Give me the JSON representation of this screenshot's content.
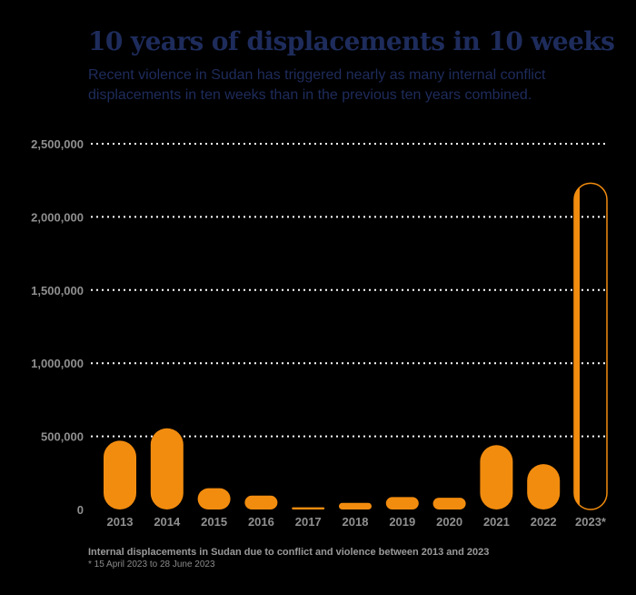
{
  "chart_data": {
    "type": "bar",
    "title": "10 years of displacements in 10 weeks",
    "subtitle": "Recent violence in Sudan has triggered nearly as many internal conflict displacements in ten weeks than in the previous ten years combined.",
    "categories": [
      "2013",
      "2014",
      "2015",
      "2016",
      "2017",
      "2018",
      "2019",
      "2020",
      "2021",
      "2022",
      "2023*"
    ],
    "values": [
      470000,
      555000,
      145000,
      95000,
      15000,
      45000,
      85000,
      80000,
      440000,
      310000,
      2230000
    ],
    "highlighted_category": "2023*",
    "y_ticks": [
      0,
      500000,
      1000000,
      1500000,
      2000000,
      2500000
    ],
    "y_tick_labels": [
      "0",
      "500,000",
      "1,000,000",
      "1,500,000",
      "2,000,000",
      "2,500,000"
    ],
    "ylim": [
      0,
      2500000
    ],
    "grid": true,
    "xlabel": "",
    "ylabel": "",
    "colors": {
      "bar": "#f28c0f",
      "title": "#1e2c5c",
      "grid": "#ffffff",
      "ticks": "#8f8f8f"
    }
  },
  "footnote": "Internal displacements in Sudan due to conflict and violence between 2013 and 2023",
  "footnote_detail": "* 15 April 2023 to 28 June 2023"
}
